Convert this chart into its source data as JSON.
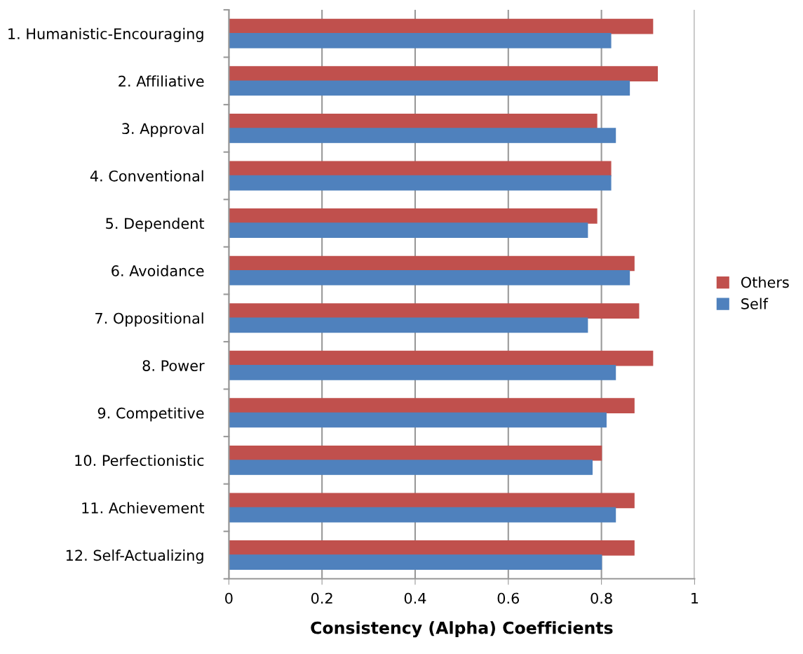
{
  "chart_data": {
    "type": "bar",
    "orientation": "horizontal",
    "xlabel": "Consistency (Alpha) Coefficients",
    "categories": [
      "1. Humanistic-Encouraging",
      "2. Affiliative",
      "3. Approval",
      "4. Conventional",
      "5. Dependent",
      "6. Avoidance",
      "7. Oppositional",
      "8. Power",
      "9. Competitive",
      "10. Perfectionistic",
      "11. Achievement",
      "12. Self-Actualizing"
    ],
    "series": [
      {
        "name": "Others",
        "color": "#c0504d",
        "values": [
          0.91,
          0.92,
          0.79,
          0.82,
          0.79,
          0.87,
          0.88,
          0.91,
          0.87,
          0.8,
          0.87,
          0.87
        ]
      },
      {
        "name": "Self",
        "color": "#4f81bd",
        "values": [
          0.82,
          0.86,
          0.83,
          0.82,
          0.77,
          0.86,
          0.77,
          0.83,
          0.81,
          0.78,
          0.83,
          0.8
        ]
      }
    ],
    "xlim": [
      0,
      1
    ],
    "xticks": [
      0,
      0.2,
      0.4,
      0.6,
      0.8,
      1
    ],
    "grid": "x",
    "legend": "right"
  }
}
